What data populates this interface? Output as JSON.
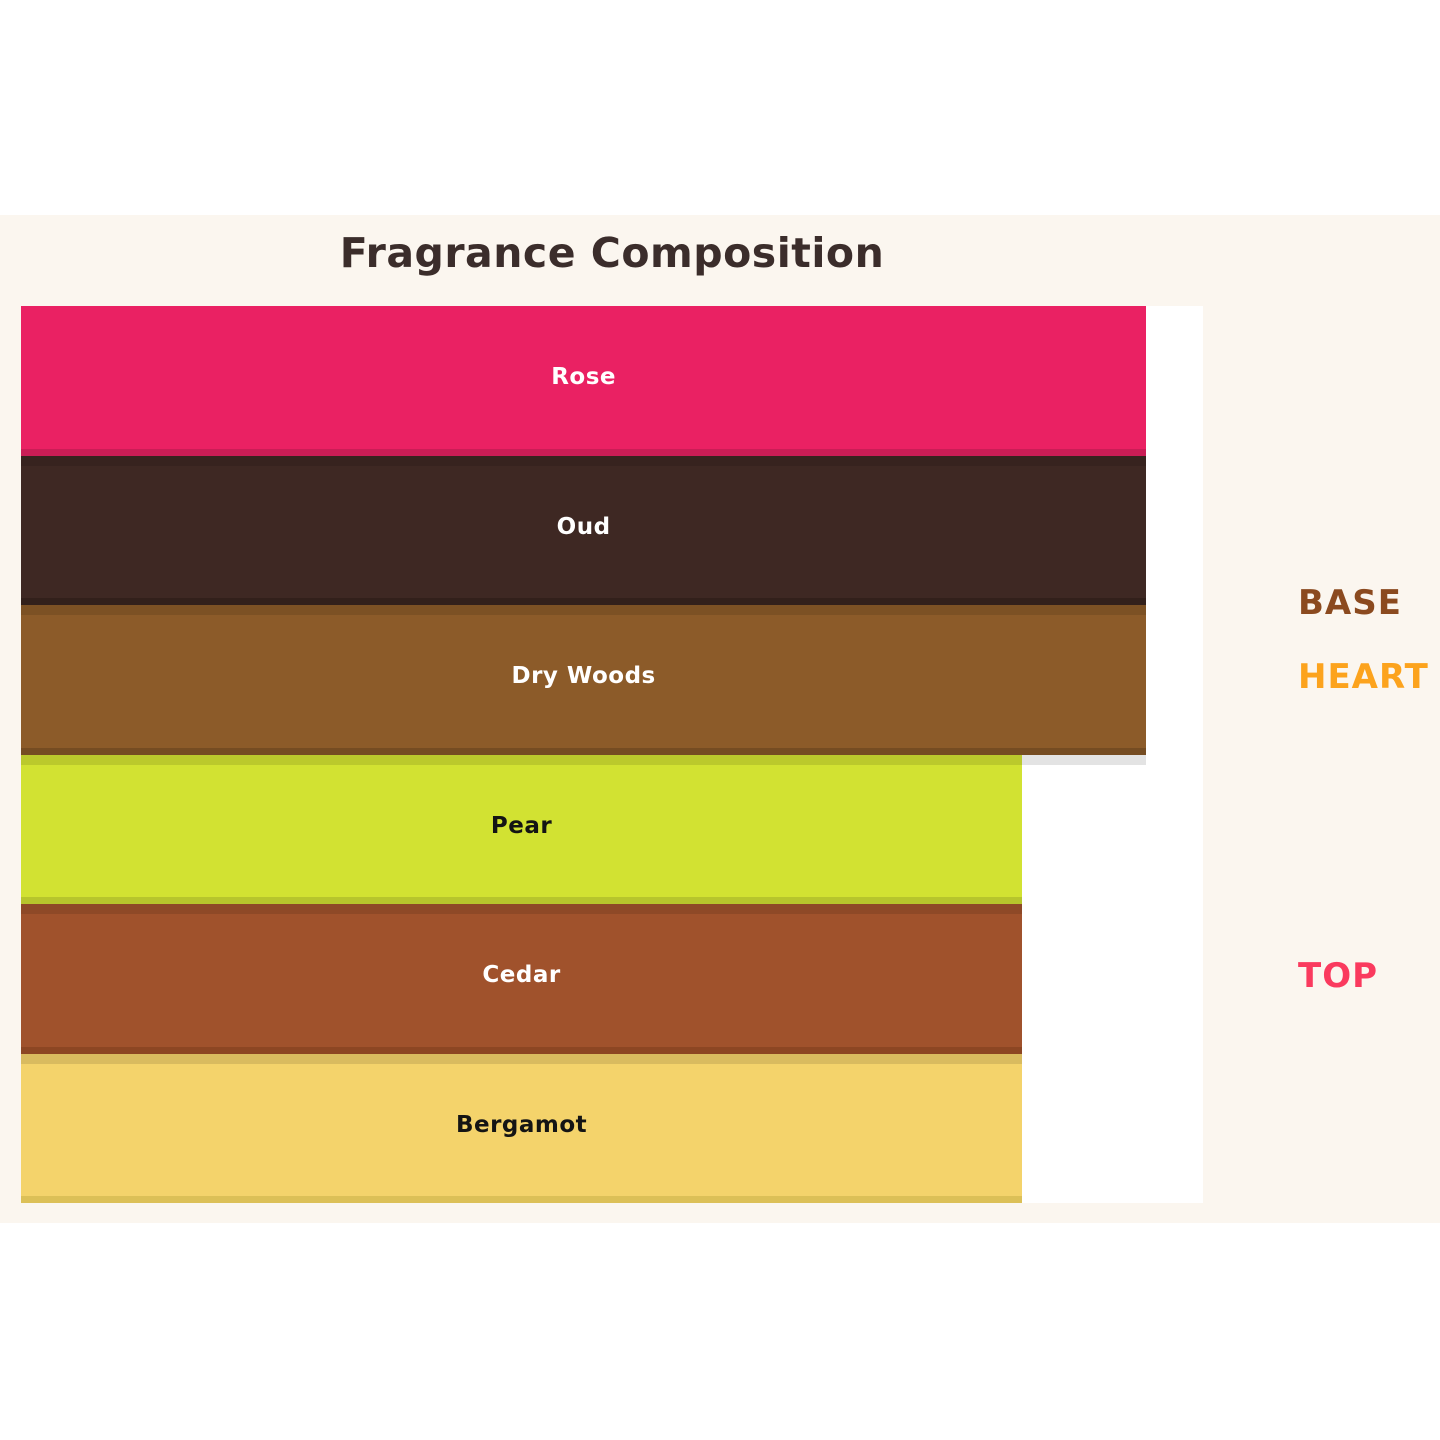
{
  "page": {
    "background": "#FFFFFF",
    "figure_background": "#FBF6EF",
    "plot_background": "#FFFFFF"
  },
  "chart_data": {
    "type": "bar",
    "orientation": "horizontal",
    "title": "Fragrance Composition",
    "title_color": "#3B2D2B",
    "xlabel": "",
    "ylabel": "",
    "xlim": [
      0,
      100
    ],
    "grid": false,
    "axes_ticks_visible": false,
    "categories": [
      "Rose",
      "Oud",
      "Dry Woods",
      "Pear",
      "Cedar",
      "Bergamot"
    ],
    "values": [
      95,
      95,
      95,
      85,
      85,
      85
    ],
    "bars": [
      {
        "label": "Rose",
        "value": 95,
        "width_pct": "95.2%",
        "color": "#EA2163",
        "edge_color": "#CA1D56",
        "label_color": "#FFFFFF"
      },
      {
        "label": "Oud",
        "value": 95,
        "width_pct": "95.2%",
        "color": "#3E2823",
        "edge_color": "#32201B",
        "label_color": "#FFFFFF"
      },
      {
        "label": "Dry Woods",
        "value": 95,
        "width_pct": "95.2%",
        "color": "#8C5B29",
        "edge_color": "#754C22",
        "label_color": "#FFFFFF"
      },
      {
        "label": "Pear",
        "value": 85,
        "width_pct": "84.7%",
        "color": "#D2E232",
        "edge_color": "#B7C52C",
        "label_color": "#141414"
      },
      {
        "label": "Cedar",
        "value": 85,
        "width_pct": "84.7%",
        "color": "#A0522C",
        "edge_color": "#8C4623",
        "label_color": "#FFFFFF"
      },
      {
        "label": "Bergamot",
        "value": 85,
        "width_pct": "84.7%",
        "color": "#F4D36B",
        "edge_color": "#DCC057",
        "label_color": "#141414"
      }
    ],
    "group_labels": [
      {
        "text": "BASE",
        "color": "#8B4A1F"
      },
      {
        "text": "HEART",
        "color": "#FCA31D"
      },
      {
        "text": "TOP",
        "color": "#FA3A5E"
      }
    ],
    "legend_position": "right"
  }
}
